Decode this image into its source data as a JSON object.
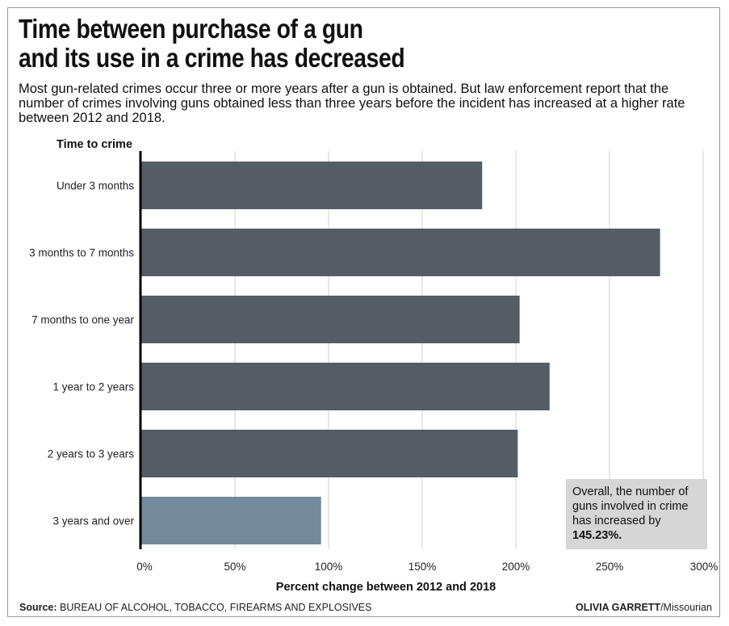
{
  "header": {
    "title_line1": "Time between purchase of a gun",
    "title_line2": "and its use in a crime has decreased",
    "subtitle": "Most gun-related crimes occur three or more years after a gun is obtained. But law enforcement report that the number of crimes involving guns obtained less than three years before the incident has increased at a higher rate between 2012 and 2018."
  },
  "footer": {
    "source_label": "Source:",
    "source_text": "BUREAU OF ALCOHOL, TOBACCO, FIREARMS AND EXPLOSIVES",
    "credit_name": "OLIVIA GARRETT",
    "credit_outlet": "/Missourian"
  },
  "chart_data": {
    "type": "bar",
    "orientation": "horizontal",
    "ylabel": "Time to crime",
    "xlabel": "Percent change between 2012 and 2018",
    "categories": [
      "Under 3 months",
      "3 months to 7 months",
      "7 months to one year",
      "1 year to 2 years",
      "2 years to 3 years",
      "3 years and over"
    ],
    "values": [
      182,
      277,
      202,
      218,
      201,
      96
    ],
    "bar_colors": [
      "#545d66",
      "#545d66",
      "#545d66",
      "#545d66",
      "#545d66",
      "#748a9b"
    ],
    "xlim": [
      0,
      300
    ],
    "xticks": [
      0,
      50,
      100,
      150,
      200,
      250,
      300
    ],
    "xtick_labels": [
      "0%",
      "50%",
      "100%",
      "150%",
      "200%",
      "250%",
      "300%"
    ],
    "grid": "vertical",
    "annotation": {
      "text": "Overall, the number of guns involved in crime has increased by",
      "highlight": "145.23%.",
      "placement": "bottom-right"
    }
  }
}
